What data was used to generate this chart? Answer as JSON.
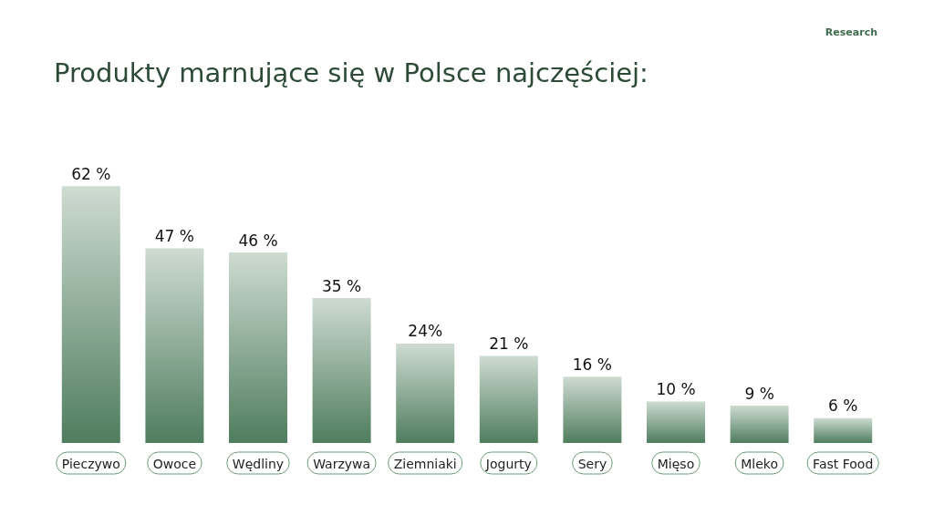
{
  "chart_data": {
    "type": "bar",
    "title": "Produkty marnujące się w Polsce najczęściej:",
    "annotations": [
      "Research"
    ],
    "categories": [
      "Pieczywo",
      "Owoce",
      "Wędliny",
      "Warzywa",
      "Ziemniaki",
      "Jogurty",
      "Sery",
      "Mięso",
      "Mleko",
      "Fast Food"
    ],
    "values": [
      62,
      47,
      46,
      35,
      24,
      21,
      16,
      10,
      9,
      6
    ],
    "value_labels": [
      "62 %",
      "47 %",
      "46 %",
      "35 %",
      "24%",
      "21 %",
      "16 %",
      "10 %",
      "9 %",
      "6 %"
    ],
    "color": "#4f7d5e"
  }
}
